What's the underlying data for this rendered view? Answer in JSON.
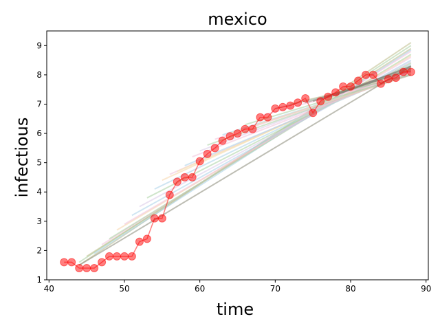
{
  "chart_data": {
    "type": "line",
    "title": "mexico",
    "xlabel": "time",
    "ylabel": "infectious",
    "xlim": [
      39.7,
      90.3
    ],
    "ylim": [
      1.0,
      9.5
    ],
    "xticks": [
      40,
      50,
      60,
      70,
      80,
      90
    ],
    "yticks": [
      1,
      2,
      3,
      4,
      5,
      6,
      7,
      8,
      9
    ],
    "grid": false,
    "observed": {
      "name": "observed",
      "color": "#ff0000",
      "x": [
        42,
        43,
        44,
        45,
        46,
        47,
        48,
        49,
        50,
        51,
        52,
        53,
        54,
        55,
        56,
        57,
        58,
        59,
        60,
        61,
        62,
        63,
        64,
        65,
        66,
        67,
        68,
        69,
        70,
        71,
        72,
        73,
        74,
        75,
        76,
        77,
        78,
        79,
        80,
        81,
        82,
        83,
        84,
        85,
        86,
        87,
        88
      ],
      "y": [
        1.6,
        1.6,
        1.4,
        1.4,
        1.4,
        1.6,
        1.8,
        1.8,
        1.8,
        1.8,
        2.3,
        2.4,
        3.1,
        3.1,
        3.9,
        4.35,
        4.5,
        4.5,
        5.05,
        5.3,
        5.5,
        5.75,
        5.9,
        6.0,
        6.15,
        6.15,
        6.55,
        6.55,
        6.85,
        6.9,
        6.95,
        7.05,
        7.2,
        6.7,
        7.1,
        7.25,
        7.4,
        7.6,
        7.6,
        7.8,
        8.0,
        8.0,
        7.7,
        7.85,
        7.9,
        8.1,
        8.1
      ]
    },
    "fits": [
      {
        "x": [
          44,
          88
        ],
        "y": [
          1.5,
          9.1
        ],
        "color": "#bbbb88"
      },
      {
        "x": [
          44,
          88
        ],
        "y": [
          1.6,
          9.0
        ],
        "color": "#a8cfa0"
      },
      {
        "x": [
          45,
          88
        ],
        "y": [
          1.8,
          8.9
        ],
        "color": "#bbbb88"
      },
      {
        "x": [
          46,
          88
        ],
        "y": [
          1.9,
          8.85
        ],
        "color": "#a8cfe8"
      },
      {
        "x": [
          47,
          88
        ],
        "y": [
          2.2,
          8.8
        ],
        "color": "#f0bfd8"
      },
      {
        "x": [
          48,
          88
        ],
        "y": [
          2.4,
          8.7
        ],
        "color": "#a8cfa0"
      },
      {
        "x": [
          49,
          88
        ],
        "y": [
          2.7,
          8.65
        ],
        "color": "#f6d4a8"
      },
      {
        "x": [
          50,
          88
        ],
        "y": [
          2.9,
          8.6
        ],
        "color": "#f0bfd8"
      },
      {
        "x": [
          51,
          88
        ],
        "y": [
          3.2,
          8.5
        ],
        "color": "#a8cfe8"
      },
      {
        "x": [
          52,
          88
        ],
        "y": [
          3.5,
          8.45
        ],
        "color": "#d8c8e8"
      },
      {
        "x": [
          53,
          88
        ],
        "y": [
          3.8,
          8.4
        ],
        "color": "#a8cfa0"
      },
      {
        "x": [
          54,
          88
        ],
        "y": [
          4.1,
          8.35
        ],
        "color": "#a8cfe8"
      },
      {
        "x": [
          55,
          88
        ],
        "y": [
          4.4,
          8.3
        ],
        "color": "#f6d4a8"
      },
      {
        "x": [
          56,
          88
        ],
        "y": [
          4.6,
          8.25
        ],
        "color": "#f0bfd8"
      },
      {
        "x": [
          57,
          88
        ],
        "y": [
          4.7,
          8.2
        ],
        "color": "#f6e8a8"
      },
      {
        "x": [
          58,
          88
        ],
        "y": [
          4.9,
          8.15
        ],
        "color": "#a8cfe8"
      },
      {
        "x": [
          59,
          88
        ],
        "y": [
          5.2,
          8.1
        ],
        "color": "#f0bfd8"
      },
      {
        "x": [
          60,
          88
        ],
        "y": [
          5.4,
          8.1
        ],
        "color": "#d8c8e8"
      },
      {
        "x": [
          61,
          88
        ],
        "y": [
          5.6,
          8.05
        ],
        "color": "#a8cfa0"
      },
      {
        "x": [
          62,
          88
        ],
        "y": [
          5.8,
          8.0
        ],
        "color": "#f0bfd8"
      },
      {
        "x": [
          63,
          88
        ],
        "y": [
          5.95,
          8.0
        ],
        "color": "#a8cfe8"
      },
      {
        "x": [
          64,
          88
        ],
        "y": [
          6.0,
          8.0
        ],
        "color": "#f6d4a8"
      },
      {
        "x": [
          66,
          88
        ],
        "y": [
          6.3,
          8.0
        ],
        "color": "#a8cfa0"
      },
      {
        "x": [
          68,
          88
        ],
        "y": [
          6.6,
          8.0
        ],
        "color": "#f0bfd8"
      },
      {
        "x": [
          70,
          88
        ],
        "y": [
          6.85,
          8.0
        ],
        "color": "#a8cfe8"
      },
      {
        "x": [
          72,
          88
        ],
        "y": [
          7.0,
          8.0
        ],
        "color": "#bbbb88"
      },
      {
        "x": [
          44,
          88
        ],
        "y": [
          1.5,
          8.3
        ],
        "color": "#888877"
      },
      {
        "x": [
          75,
          88
        ],
        "y": [
          7.1,
          8.25
        ],
        "color": "#777766"
      },
      {
        "x": [
          76,
          88
        ],
        "y": [
          7.15,
          8.2
        ],
        "color": "#777766"
      },
      {
        "x": [
          74,
          88
        ],
        "y": [
          7.05,
          8.15
        ],
        "color": "#888877"
      },
      {
        "x": [
          78,
          88
        ],
        "y": [
          7.3,
          8.3
        ],
        "color": "#777766"
      }
    ]
  }
}
